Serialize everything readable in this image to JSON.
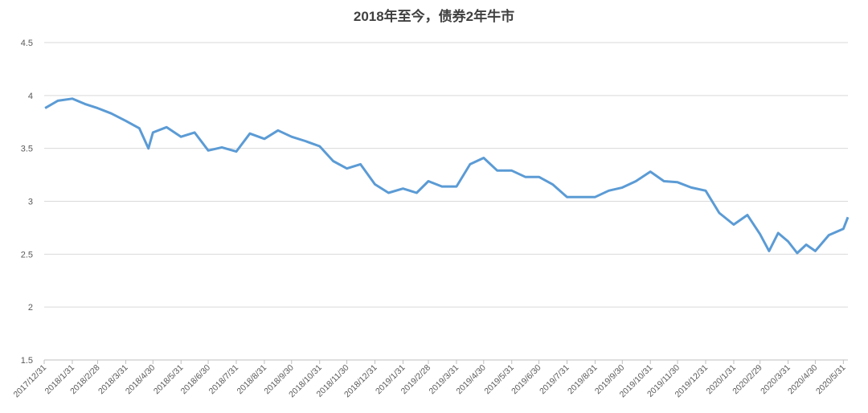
{
  "chart_data": {
    "type": "line",
    "title": "2018年至今，债券2年牛市",
    "x": [
      "2018/1/1",
      "2018/1/15",
      "2018/1/31",
      "2018/2/14",
      "2018/2/28",
      "2018/3/15",
      "2018/3/31",
      "2018/4/15",
      "2018/4/25",
      "2018/4/30",
      "2018/5/15",
      "2018/5/31",
      "2018/6/15",
      "2018/6/30",
      "2018/7/15",
      "2018/7/31",
      "2018/8/15",
      "2018/8/31",
      "2018/9/15",
      "2018/9/30",
      "2018/10/15",
      "2018/10/31",
      "2018/11/15",
      "2018/11/30",
      "2018/12/15",
      "2018/12/31",
      "2019/1/15",
      "2019/1/31",
      "2019/2/15",
      "2019/2/28",
      "2019/3/15",
      "2019/3/31",
      "2019/4/15",
      "2019/4/30",
      "2019/5/15",
      "2019/5/31",
      "2019/6/15",
      "2019/6/30",
      "2019/7/15",
      "2019/7/31",
      "2019/8/15",
      "2019/8/31",
      "2019/9/15",
      "2019/9/30",
      "2019/10/15",
      "2019/10/31",
      "2019/11/15",
      "2019/11/30",
      "2019/12/15",
      "2019/12/31",
      "2020/1/15",
      "2020/1/31",
      "2020/2/15",
      "2020/2/29",
      "2020/3/10",
      "2020/3/20",
      "2020/3/31",
      "2020/4/10",
      "2020/4/20",
      "2020/4/30",
      "2020/5/15",
      "2020/5/31",
      "2020/6/5"
    ],
    "series": [
      {
        "color": "#5b9bd5",
        "values": [
          3.88,
          3.95,
          3.97,
          3.92,
          3.88,
          3.83,
          3.76,
          3.69,
          3.5,
          3.65,
          3.7,
          3.61,
          3.65,
          3.48,
          3.51,
          3.47,
          3.64,
          3.59,
          3.67,
          3.61,
          3.57,
          3.52,
          3.38,
          3.31,
          3.35,
          3.16,
          3.08,
          3.12,
          3.08,
          3.19,
          3.14,
          3.14,
          3.35,
          3.41,
          3.29,
          3.29,
          3.23,
          3.23,
          3.16,
          3.04,
          3.04,
          3.04,
          3.1,
          3.13,
          3.19,
          3.28,
          3.19,
          3.18,
          3.13,
          3.1,
          2.89,
          2.78,
          2.87,
          2.69,
          2.53,
          2.7,
          2.62,
          2.51,
          2.59,
          2.53,
          2.68,
          2.74,
          2.85
        ]
      }
    ],
    "xlim": [
      "2017/12/31",
      "2020/6/5"
    ],
    "xticks": [
      "2017/12/31",
      "2018/1/31",
      "2018/2/28",
      "2018/3/31",
      "2018/4/30",
      "2018/5/31",
      "2018/6/30",
      "2018/7/31",
      "2018/8/31",
      "2018/9/30",
      "2018/10/31",
      "2018/11/30",
      "2018/12/31",
      "2019/1/31",
      "2019/2/28",
      "2019/3/31",
      "2019/4/30",
      "2019/5/31",
      "2019/6/30",
      "2019/7/31",
      "2019/8/31",
      "2019/9/30",
      "2019/10/31",
      "2019/11/30",
      "2019/12/31",
      "2020/1/31",
      "2020/2/29",
      "2020/3/31",
      "2020/4/30",
      "2020/5/31"
    ],
    "ylim": [
      1.5,
      4.5
    ],
    "yticks": [
      1.5,
      2,
      2.5,
      3,
      3.5,
      4,
      4.5
    ],
    "grid": true
  }
}
